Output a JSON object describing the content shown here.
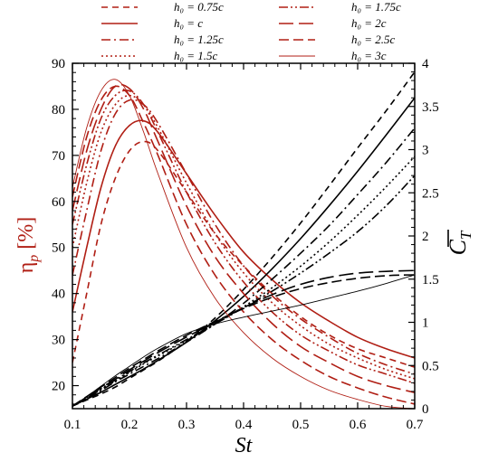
{
  "chart_data": {
    "type": "line",
    "xlabel": "St",
    "ylabel_left": "η_p [%]",
    "ylabel_right": "C_T",
    "xlim": [
      0.1,
      0.7
    ],
    "ylim_left": [
      15,
      90
    ],
    "ylim_right": [
      0,
      4
    ],
    "x_ticks": [
      "0.1",
      "0.2",
      "0.3",
      "0.4",
      "0.5",
      "0.6",
      "0.7"
    ],
    "y_ticks_left": [
      "20",
      "30",
      "40",
      "50",
      "60",
      "70",
      "80",
      "90"
    ],
    "y_ticks_right": [
      "0",
      "0.5",
      "1",
      "1.5",
      "2",
      "2.5",
      "3",
      "3.5",
      "4"
    ],
    "legend_position": "top",
    "colors": {
      "efficiency": "#b01e14",
      "thrust": "#000000"
    },
    "x": [
      0.1,
      0.125,
      0.15,
      0.175,
      0.2,
      0.225,
      0.25,
      0.3,
      0.35,
      0.4,
      0.45,
      0.5,
      0.55,
      0.6,
      0.65,
      0.7
    ],
    "series": [
      {
        "name": "h₀ = 0.75c",
        "style": "dashed",
        "efficiency": [
          25,
          40,
          55,
          65,
          71,
          73,
          71,
          62,
          53,
          46,
          40,
          35,
          31,
          28,
          26,
          24
        ],
        "thrust": [
          0.03,
          0.1,
          0.17,
          0.25,
          0.35,
          0.45,
          0.55,
          0.78,
          1.05,
          1.38,
          1.75,
          2.15,
          2.58,
          3.02,
          3.45,
          3.9
        ]
      },
      {
        "name": "h₀ = c",
        "style": "solid",
        "efficiency": [
          36,
          50,
          63,
          72,
          76.5,
          77.5,
          75,
          66,
          57,
          49,
          43,
          38,
          34,
          30.5,
          28,
          26
        ],
        "thrust": [
          0.03,
          0.11,
          0.19,
          0.28,
          0.37,
          0.46,
          0.56,
          0.77,
          1.02,
          1.3,
          1.62,
          1.97,
          2.35,
          2.75,
          3.17,
          3.6
        ]
      },
      {
        "name": "h₀ = 1.25c",
        "style": "dash-dot",
        "efficiency": [
          44,
          58,
          71,
          79,
          82,
          81,
          77,
          66,
          55,
          46,
          39.5,
          34.5,
          30.5,
          27,
          24.5,
          22.5
        ],
        "thrust": [
          0.03,
          0.12,
          0.21,
          0.31,
          0.4,
          0.49,
          0.58,
          0.77,
          0.98,
          1.22,
          1.5,
          1.8,
          2.12,
          2.48,
          2.85,
          3.25
        ]
      },
      {
        "name": "h₀ = 1.5c",
        "style": "dotted",
        "efficiency": [
          50,
          64,
          75,
          81,
          83,
          81,
          76,
          64,
          53,
          44.5,
          38,
          33,
          29,
          26,
          23.5,
          21.5
        ],
        "thrust": [
          0.03,
          0.12,
          0.22,
          0.32,
          0.42,
          0.52,
          0.61,
          0.79,
          0.98,
          1.18,
          1.4,
          1.65,
          1.93,
          2.24,
          2.57,
          2.92
        ]
      },
      {
        "name": "h₀ = 1.75c",
        "style": "dash-dot-dot",
        "efficiency": [
          55,
          68,
          78,
          83,
          84,
          81,
          75,
          62,
          51,
          42.5,
          36,
          31,
          27.5,
          24.5,
          22.5,
          20.5
        ],
        "thrust": [
          0.03,
          0.13,
          0.23,
          0.33,
          0.43,
          0.53,
          0.62,
          0.8,
          0.98,
          1.17,
          1.36,
          1.57,
          1.8,
          2.05,
          2.35,
          2.7
        ]
      },
      {
        "name": "h₀ = 2c",
        "style": "long-dash",
        "efficiency": [
          58,
          71,
          80,
          85,
          84.5,
          80,
          73,
          59,
          48,
          40,
          33.5,
          28.5,
          25,
          22,
          20,
          18.5
        ],
        "thrust": [
          0.03,
          0.13,
          0.24,
          0.34,
          0.45,
          0.55,
          0.65,
          0.83,
          1.0,
          1.17,
          1.32,
          1.44,
          1.52,
          1.57,
          1.59,
          1.6
        ]
      },
      {
        "name": "h₀ = 2.5c",
        "style": "dash-dash",
        "efficiency": [
          61,
          74,
          82,
          85,
          83,
          77,
          70,
          55,
          44,
          36,
          30,
          25.5,
          22,
          19.5,
          17.5,
          16
        ],
        "thrust": [
          0.03,
          0.14,
          0.25,
          0.36,
          0.47,
          0.57,
          0.67,
          0.85,
          1.01,
          1.16,
          1.29,
          1.39,
          1.46,
          1.51,
          1.54,
          1.55
        ]
      },
      {
        "name": "h₀ = 3c",
        "style": "thin",
        "efficiency": [
          63,
          76,
          84,
          86.5,
          83,
          75,
          66,
          50,
          39,
          31.5,
          26,
          22,
          19,
          17,
          15.5,
          15
        ],
        "thrust": [
          0.03,
          0.14,
          0.26,
          0.38,
          0.49,
          0.6,
          0.7,
          0.87,
          0.98,
          1.06,
          1.13,
          1.2,
          1.28,
          1.36,
          1.45,
          1.55
        ]
      }
    ]
  }
}
